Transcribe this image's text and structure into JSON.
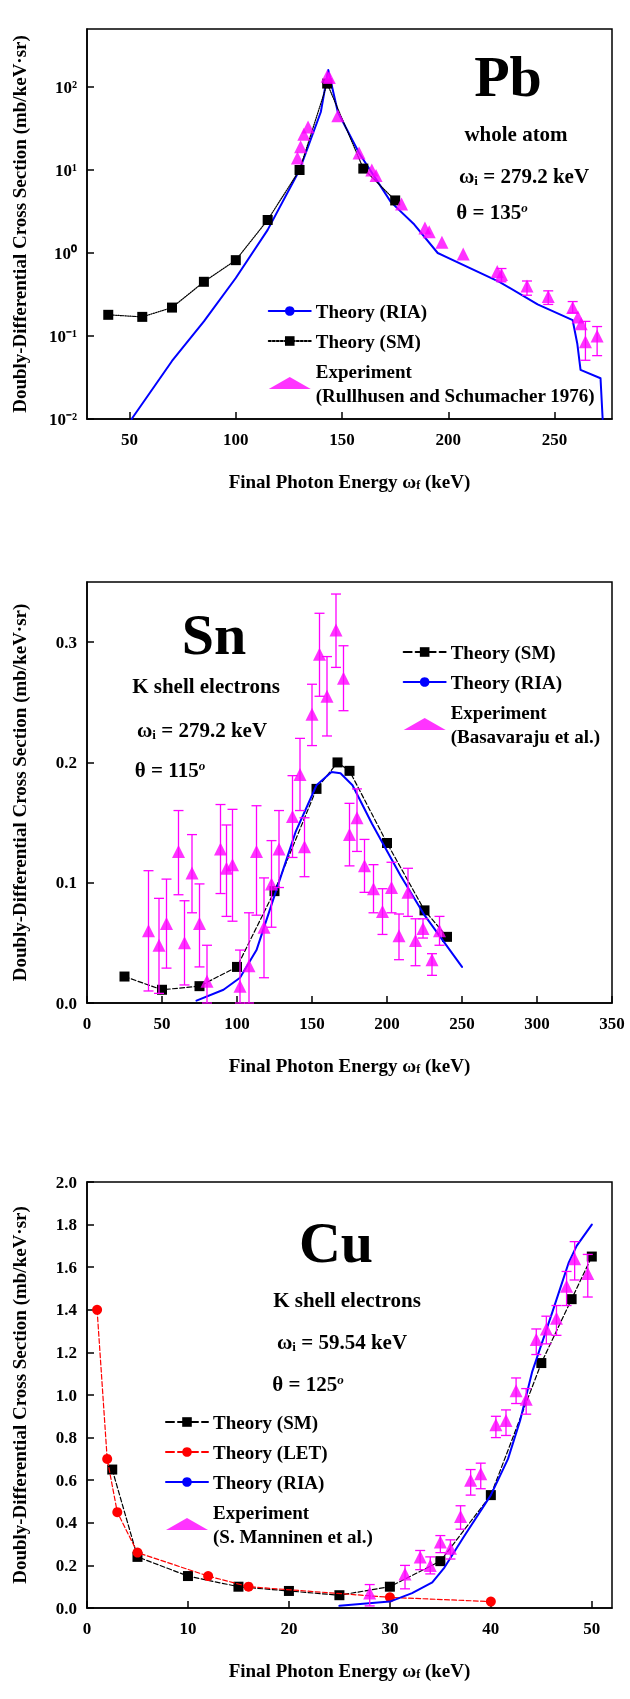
{
  "chart_data": [
    {
      "type": "line",
      "xlabel": "Final Photon Energy ω$_{f}$ (keV)",
      "ylabel": "Doubly-Differential Cross Section (mb/keV·sr)",
      "annotations": [
        "Pb",
        "whole atom",
        "ω$_{i}$ = 279.2 keV",
        "θ = 135$^{o}$"
      ],
      "xlim": [
        30,
        277
      ],
      "xticks": [
        50,
        100,
        150,
        200,
        250
      ],
      "ylim": [
        0.01,
        500
      ],
      "yticks": [
        {
          "value": 0.01,
          "label": "10⁻²"
        },
        {
          "value": 0.1,
          "label": "10⁻¹"
        },
        {
          "value": 1,
          "label": "10⁰"
        },
        {
          "value": 10,
          "label": "10¹"
        },
        {
          "value": 100,
          "label": "10²"
        }
      ],
      "log": "y",
      "grid": false,
      "legend": "bottom right",
      "series": [
        {
          "name": "Theory (RIA)",
          "color": "#0000ff",
          "marker": "none",
          "line_style": "solid",
          "x": [
            51,
            70,
            85,
            100,
            115,
            130,
            140,
            143.5,
            148,
            158,
            173,
            184,
            195,
            224,
            242,
            258.5,
            260.7,
            262.2,
            271.6,
            272.6
          ],
          "values": [
            0.01,
            0.05,
            0.15,
            0.5,
            1.9,
            10,
            50,
            160,
            50,
            16,
            4.1,
            2.2,
            1.0,
            0.45,
            0.24,
            0.155,
            0.08,
            0.039,
            0.031,
            0.01
          ]
        },
        {
          "name": "Theory (SM)",
          "color": "#000000",
          "marker": "square",
          "line_style": "dotted",
          "x": [
            40,
            56,
            70,
            85,
            100,
            115,
            130,
            143,
            160,
            175
          ],
          "values": [
            0.18,
            0.17,
            0.22,
            0.45,
            0.82,
            2.5,
            10,
            110,
            10.4,
            4.3
          ]
        },
        {
          "name": "Experiment\n(Rullhusen and Schumacher 1976)",
          "type": "scatter",
          "color": "#ff00ff",
          "marker": "triangle",
          "x": [
            129,
            130.5,
            132,
            134,
            143,
            144,
            148,
            158,
            164,
            166,
            178,
            189,
            191,
            197,
            207,
            223,
            225,
            237,
            247,
            258.5,
            261,
            262.5,
            264.5,
            270
          ],
          "values": [
            14,
            19,
            27,
            33,
            135,
            130,
            45,
            16,
            10,
            8.6,
            3.9,
            2.0,
            1.8,
            1.35,
            0.97,
            0.6,
            0.55,
            0.4,
            0.3,
            0.22,
            0.17,
            0.14,
            0.085,
            0.1
          ],
          "errors": [
            null,
            null,
            null,
            null,
            null,
            null,
            null,
            null,
            null,
            null,
            null,
            null,
            null,
            null,
            null,
            null,
            [
              0.45,
              0.65
            ],
            [
              0.31,
              0.46
            ],
            [
              0.24,
              0.35
            ],
            [
              0.19,
              0.26
            ],
            null,
            null,
            [
              0.051,
              0.15
            ],
            [
              0.058,
              0.13
            ]
          ]
        }
      ]
    },
    {
      "type": "line",
      "xlabel": "Final Photon Energy ω$_{f}$ (keV)",
      "ylabel": "Doubly-Differential Cross Section (mb/keV·sr)",
      "annotations": [
        "Sn",
        "K shell electrons",
        "ω$_{i}$ = 279.2 keV",
        "θ = 115$^{o}$"
      ],
      "xlim": [
        0,
        350
      ],
      "xticks": [
        0,
        50,
        100,
        150,
        200,
        250,
        300,
        350
      ],
      "ylim": [
        0,
        0.35
      ],
      "yticks": [
        {
          "value": 0,
          "label": "0.0"
        },
        0.1,
        0.2,
        0.3
      ],
      "grid": false,
      "legend": "top right",
      "series": [
        {
          "name": "Theory (SM)",
          "color": "#000000",
          "marker": "square",
          "line_style": "dashed",
          "x": [
            25,
            50,
            75,
            100,
            125,
            153,
            167,
            175,
            200,
            225,
            240
          ],
          "values": [
            0.022,
            0.011,
            0.014,
            0.03,
            0.093,
            0.178,
            0.2,
            0.193,
            0.133,
            0.077,
            0.055
          ]
        },
        {
          "name": "Theory (RIA)",
          "color": "#0000ff",
          "marker": "none",
          "line_style": "solid",
          "x": [
            73,
            91,
            102,
            113,
            126,
            139,
            153,
            163,
            169,
            177,
            190,
            209,
            225,
            250
          ],
          "values": [
            0.002,
            0.011,
            0.021,
            0.044,
            0.093,
            0.142,
            0.181,
            0.192,
            0.191,
            0.181,
            0.149,
            0.106,
            0.073,
            0.03
          ]
        },
        {
          "name": "Experiment\n(Basavaraju et al.)",
          "type": "scatter",
          "color": "#ff00ff",
          "marker": "triangle",
          "x": [
            41,
            48,
            53,
            61,
            65,
            70,
            75,
            80,
            89,
            93,
            97,
            102,
            108,
            113,
            118,
            123,
            128,
            137,
            142,
            145,
            150,
            155,
            160,
            166,
            171,
            175,
            180,
            185,
            191,
            197,
            203,
            208,
            214,
            219,
            224,
            230,
            235
          ],
          "values": [
            0.06,
            0.048,
            0.066,
            0.126,
            0.05,
            0.108,
            0.066,
            0.018,
            0.128,
            0.112,
            0.115,
            0.014,
            0.031,
            0.126,
            0.063,
            0.099,
            0.128,
            0.155,
            0.19,
            0.13,
            0.24,
            0.29,
            0.255,
            0.31,
            0.27,
            0.14,
            0.154,
            0.114,
            0.095,
            0.076,
            0.096,
            0.056,
            0.092,
            0.052,
            0.062,
            0.036,
            0.06
          ],
          "errors": [
            [
              0.01,
              0.11
            ],
            [
              0.008,
              0.087
            ],
            [
              0.029,
              0.103
            ],
            [
              0.09,
              0.16
            ],
            [
              0.015,
              0.085
            ],
            [
              0.075,
              0.14
            ],
            [
              0.03,
              0.099
            ],
            [
              0,
              0.048
            ],
            [
              0.091,
              0.165
            ],
            [
              0.072,
              0.148
            ],
            [
              0.068,
              0.161
            ],
            [
              0,
              0.044
            ],
            [
              0,
              0.075
            ],
            [
              0.073,
              0.164
            ],
            [
              0.021,
              0.104
            ],
            [
              0.063,
              0.135
            ],
            [
              0.096,
              0.16
            ],
            [
              0.121,
              0.189
            ],
            [
              0.16,
              0.22
            ],
            [
              0.105,
              0.154
            ],
            [
              0.214,
              0.265
            ],
            [
              0.255,
              0.324
            ],
            [
              0.222,
              0.288
            ],
            [
              0.279,
              0.34
            ],
            [
              0.243,
              0.297
            ],
            [
              0.114,
              0.166
            ],
            [
              0.126,
              0.178
            ],
            [
              0.092,
              0.136
            ],
            [
              0.075,
              0.115
            ],
            [
              0.057,
              0.095
            ],
            [
              0.075,
              0.117
            ],
            [
              0.036,
              0.074
            ],
            [
              0.072,
              0.112
            ],
            [
              0.031,
              0.07
            ],
            [
              0.054,
              0.07
            ],
            [
              0.023,
              0.041
            ],
            [
              0.048,
              0.072
            ]
          ]
        }
      ]
    },
    {
      "type": "line",
      "xlabel": "Final Photon Energy ω$_{f}$ (keV)",
      "ylabel": "Doubly-Differential Cross Section (mb/keV·sr)",
      "annotations": [
        "Cu",
        "K shell electrons",
        "ω$_{i}$ = 59.54 keV",
        "θ = 125$^{o}$"
      ],
      "xlim": [
        0,
        52
      ],
      "xticks": [
        0,
        10,
        20,
        30,
        40,
        50
      ],
      "ylim": [
        0,
        2
      ],
      "yticks": [
        {
          "value": 0,
          "label": "0.0"
        },
        0.2,
        0.4,
        0.6,
        0.8,
        {
          "value": 1,
          "label": "1.0"
        },
        1.2,
        1.4,
        1.6,
        1.8,
        {
          "value": 2,
          "label": "2.0"
        }
      ],
      "grid": false,
      "legend": "left",
      "series": [
        {
          "name": "Theory (SM)",
          "color": "#000000",
          "marker": "square",
          "line_style": "dashed",
          "x": [
            2.5,
            5,
            10,
            15,
            20,
            25,
            30,
            35,
            40,
            45,
            48,
            50
          ],
          "values": [
            0.65,
            0.24,
            0.15,
            0.1,
            0.08,
            0.06,
            0.1,
            0.22,
            0.53,
            1.15,
            1.45,
            1.65
          ]
        },
        {
          "name": "Theory (LET)",
          "color": "#ff0000",
          "marker": "circle",
          "line_style": "dashed",
          "x": [
            1,
            2,
            3,
            5,
            12,
            16,
            30,
            40
          ],
          "values": [
            1.4,
            0.7,
            0.45,
            0.26,
            0.15,
            0.1,
            0.05,
            0.03
          ]
        },
        {
          "name": "Theory (RIA)",
          "color": "#0000ff",
          "marker": "none",
          "line_style": "solid",
          "x": [
            25,
            30,
            32.2,
            34.2,
            35.4,
            37.4,
            40,
            41.7,
            42.9,
            44.1,
            46.1,
            47.7,
            48.5,
            50
          ],
          "values": [
            0.01,
            0.03,
            0.07,
            0.12,
            0.19,
            0.34,
            0.53,
            0.7,
            0.88,
            1.11,
            1.39,
            1.62,
            1.7,
            1.8
          ]
        },
        {
          "name": "Experiment\n(S. Manninen et al.)",
          "type": "scatter",
          "color": "#ff00ff",
          "marker": "triangle",
          "x": [
            28,
            31.5,
            33,
            34,
            35,
            36,
            37,
            38,
            39,
            40.5,
            41.5,
            42.5,
            43.5,
            44.5,
            45.5,
            46.5,
            47.5,
            48.3,
            49.6
          ],
          "values": [
            0.07,
            0.16,
            0.24,
            0.2,
            0.31,
            0.28,
            0.43,
            0.6,
            0.63,
            0.86,
            0.88,
            1.02,
            0.98,
            1.26,
            1.31,
            1.36,
            1.51,
            1.64,
            1.57
          ],
          "errors": [
            [
              0.01,
              0.11
            ],
            [
              0.09,
              0.2
            ],
            [
              0.18,
              0.27
            ],
            [
              0.16,
              0.24
            ],
            [
              0.26,
              0.34
            ],
            [
              0.23,
              0.32
            ],
            [
              0.37,
              0.48
            ],
            [
              0.53,
              0.65
            ],
            [
              0.56,
              0.68
            ],
            [
              0.8,
              0.9
            ],
            [
              0.81,
              0.93
            ],
            [
              0.96,
              1.08
            ],
            [
              0.91,
              1.03
            ],
            [
              1.19,
              1.31
            ],
            [
              1.24,
              1.37
            ],
            [
              1.28,
              1.42
            ],
            [
              1.42,
              1.58
            ],
            [
              1.54,
              1.72
            ],
            [
              1.46,
              1.66
            ]
          ]
        }
      ]
    }
  ]
}
